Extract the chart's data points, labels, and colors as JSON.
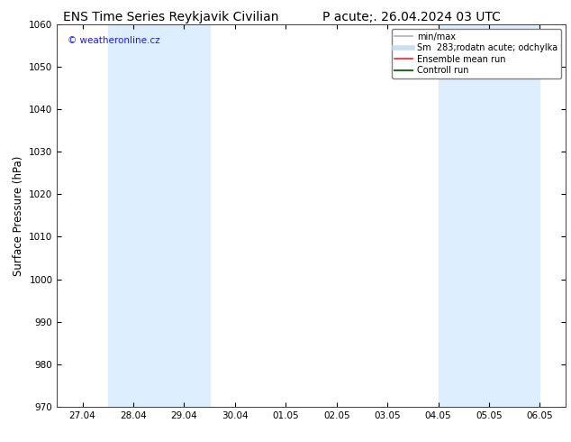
{
  "title_left": "ENS Time Series Reykjavik Civilian",
  "title_right": "P acute;. 26.04.2024 03 UTC",
  "ylabel": "Surface Pressure (hPa)",
  "ylim": [
    970,
    1060
  ],
  "yticks": [
    970,
    980,
    990,
    1000,
    1010,
    1020,
    1030,
    1040,
    1050,
    1060
  ],
  "x_labels": [
    "27.04",
    "28.04",
    "29.04",
    "30.04",
    "01.05",
    "02.05",
    "03.05",
    "04.05",
    "05.05",
    "06.05"
  ],
  "x_positions": [
    0,
    1,
    2,
    3,
    4,
    5,
    6,
    7,
    8,
    9
  ],
  "shaded_bands": [
    {
      "x_start": 0.5,
      "x_end": 1.5
    },
    {
      "x_start": 1.5,
      "x_end": 2.5
    },
    {
      "x_start": 7.0,
      "x_end": 8.0
    },
    {
      "x_start": 8.0,
      "x_end": 9.0
    }
  ],
  "shaded_color": "#ddeeff",
  "bg_color": "#ffffff",
  "plot_bg_color": "#ffffff",
  "watermark": "© weatheronline.cz",
  "watermark_color": "#1a1aff",
  "legend_labels": [
    "min/max",
    "Sm  283;rodatn acute; odchylka",
    "Ensemble mean run",
    "Controll run"
  ],
  "legend_colors": [
    "#b0b0b0",
    "#c8dff0",
    "#ff2020",
    "#207020"
  ],
  "legend_lws": [
    1.2,
    4.0,
    1.2,
    1.5
  ],
  "title_fontsize": 10,
  "tick_fontsize": 7.5,
  "ylabel_fontsize": 8.5,
  "axis_color": "#404040",
  "xlim": [
    -0.5,
    9.5
  ]
}
